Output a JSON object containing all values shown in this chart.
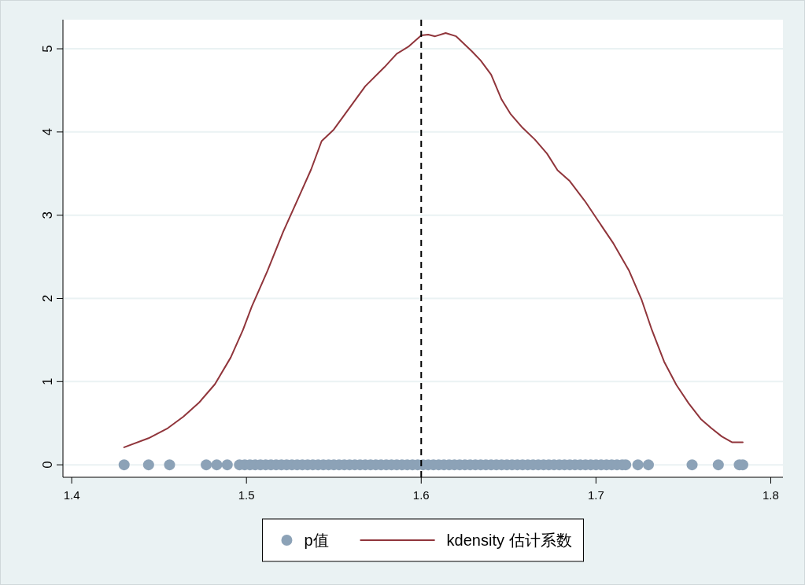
{
  "chart_data": {
    "type": "scatter",
    "xlim": [
      1.395,
      1.807
    ],
    "ylim": [
      -0.15,
      5.35
    ],
    "xticks": [
      1.4,
      1.5,
      1.6,
      1.7,
      1.8
    ],
    "yticks": [
      0,
      1,
      2,
      3,
      4,
      5
    ],
    "grid": "y",
    "legend": "bottom",
    "ref_lines": [
      {
        "axis": "x",
        "value": 1.6,
        "color": "#000000",
        "line_style": "dashed"
      }
    ],
    "series": [
      {
        "name": "p值",
        "marker": "circle",
        "color": "#8ca2b7",
        "x": [
          1.43,
          1.444,
          1.456,
          1.477,
          1.483,
          1.489,
          1.496,
          1.499,
          1.502,
          1.505,
          1.508,
          1.511,
          1.514,
          1.517,
          1.52,
          1.523,
          1.526,
          1.529,
          1.532,
          1.535,
          1.538,
          1.541,
          1.544,
          1.547,
          1.55,
          1.553,
          1.556,
          1.559,
          1.562,
          1.565,
          1.568,
          1.571,
          1.574,
          1.577,
          1.58,
          1.583,
          1.586,
          1.589,
          1.592,
          1.595,
          1.598,
          1.601,
          1.604,
          1.607,
          1.61,
          1.613,
          1.616,
          1.619,
          1.622,
          1.625,
          1.628,
          1.631,
          1.634,
          1.637,
          1.64,
          1.643,
          1.646,
          1.649,
          1.652,
          1.655,
          1.658,
          1.661,
          1.664,
          1.667,
          1.67,
          1.673,
          1.676,
          1.679,
          1.682,
          1.685,
          1.688,
          1.691,
          1.694,
          1.697,
          1.7,
          1.703,
          1.706,
          1.709,
          1.712,
          1.715,
          1.717,
          1.724,
          1.73,
          1.755,
          1.77,
          1.782,
          1.784
        ],
        "values": [
          0,
          0,
          0,
          0,
          0,
          0,
          0,
          0,
          0,
          0,
          0,
          0,
          0,
          0,
          0,
          0,
          0,
          0,
          0,
          0,
          0,
          0,
          0,
          0,
          0,
          0,
          0,
          0,
          0,
          0,
          0,
          0,
          0,
          0,
          0,
          0,
          0,
          0,
          0,
          0,
          0,
          0,
          0,
          0,
          0,
          0,
          0,
          0,
          0,
          0,
          0,
          0,
          0,
          0,
          0,
          0,
          0,
          0,
          0,
          0,
          0,
          0,
          0,
          0,
          0,
          0,
          0,
          0,
          0,
          0,
          0,
          0,
          0,
          0,
          0,
          0,
          0,
          0,
          0,
          0,
          0,
          0,
          0,
          0,
          0,
          0,
          0
        ]
      },
      {
        "name": "kdensity 估计系数",
        "type": "line",
        "color": "#90353b",
        "x": [
          1.43,
          1.444,
          1.455,
          1.464,
          1.473,
          1.482,
          1.491,
          1.498,
          1.503,
          1.512,
          1.521,
          1.53,
          1.537,
          1.543,
          1.55,
          1.559,
          1.568,
          1.579,
          1.586,
          1.593,
          1.6,
          1.604,
          1.608,
          1.614,
          1.62,
          1.629,
          1.634,
          1.64,
          1.646,
          1.651,
          1.658,
          1.665,
          1.672,
          1.678,
          1.685,
          1.694,
          1.701,
          1.71,
          1.719,
          1.726,
          1.732,
          1.739,
          1.746,
          1.753,
          1.76,
          1.766,
          1.772,
          1.778,
          1.784
        ],
        "values": [
          0.21,
          0.32,
          0.44,
          0.58,
          0.75,
          0.97,
          1.29,
          1.62,
          1.9,
          2.33,
          2.8,
          3.22,
          3.55,
          3.89,
          4.03,
          4.29,
          4.55,
          4.78,
          4.94,
          5.03,
          5.16,
          5.17,
          5.15,
          5.19,
          5.15,
          4.97,
          4.86,
          4.69,
          4.39,
          4.22,
          4.05,
          3.91,
          3.74,
          3.54,
          3.41,
          3.16,
          2.94,
          2.66,
          2.33,
          1.99,
          1.62,
          1.24,
          0.96,
          0.74,
          0.55,
          0.44,
          0.34,
          0.27,
          0.27
        ]
      }
    ]
  }
}
